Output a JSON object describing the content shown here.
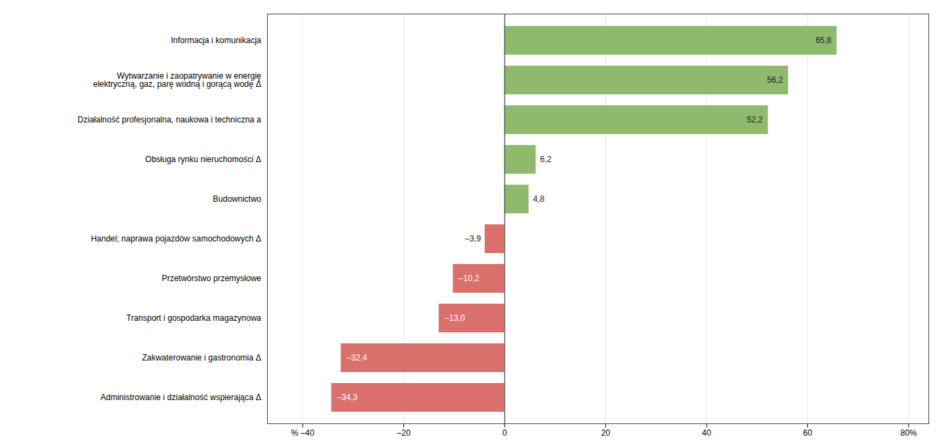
{
  "chart_data": {
    "type": "bar",
    "orientation": "horizontal",
    "categories": [
      "Administrowanie i działalność wspierająca Δ",
      "Zakwaterowanie i gastronomia Δ",
      "Transport i gospodarka magazynowa",
      "Przetwórstwo przemysłowe",
      "Handel; naprawa pojazdów samochodowych Δ",
      "Budownictwo",
      "Obsługa rynku nieruchomości Δ",
      "Działalność profesjonalna, naukowa i techniczna a",
      "Wytwarzanie i zaopatrywanie w energię\nelektryczną, gaz, parę wodną i gorącą wodę Δ",
      "Informacja i komunikacja"
    ],
    "values": [
      -34.3,
      -32.4,
      -13.0,
      -10.2,
      -3.9,
      4.8,
      6.2,
      52.2,
      56.2,
      65.8
    ],
    "value_labels": [
      "–34,3",
      "–32,4",
      "–13,0",
      "–10,2",
      "–3,9",
      "4,8",
      "6,2",
      "52,2",
      "56,2",
      "65,8"
    ],
    "colors": [
      "#d9706b",
      "#d9706b",
      "#d9706b",
      "#d9706b",
      "#d9706b",
      "#8fba6e",
      "#8fba6e",
      "#8fba6e",
      "#8fba6e",
      "#8fba6e"
    ],
    "xlim": [
      -47,
      84
    ],
    "xticks": [
      {
        "value": -40,
        "label": "% –40"
      },
      {
        "value": -20,
        "label": "–20"
      },
      0,
      20,
      40,
      60,
      {
        "value": 80,
        "label": "80%"
      }
    ],
    "grid": true,
    "data_labels": true
  }
}
